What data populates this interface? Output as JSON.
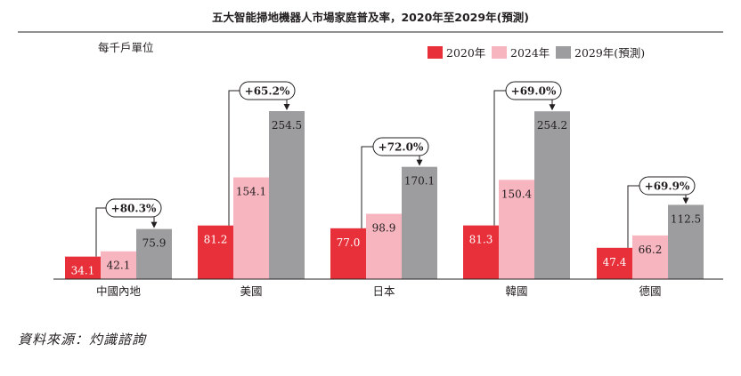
{
  "chart_data": {
    "type": "bar",
    "title": "五大智能掃地機器人市場家庭普及率，2020年至2029年(預測)",
    "ylabel": "每千戶單位",
    "categories": [
      "中國內地",
      "美國",
      "日本",
      "韓國",
      "德國"
    ],
    "series": [
      {
        "name": "2020年",
        "color": "#e8303a",
        "values": [
          34.1,
          81.2,
          77.0,
          81.3,
          47.4
        ]
      },
      {
        "name": "2024年",
        "color": "#f7b5c0",
        "values": [
          42.1,
          154.1,
          98.9,
          150.4,
          66.2
        ]
      },
      {
        "name": "2029年(預測)",
        "color": "#9d9d9f",
        "values": [
          75.9,
          254.5,
          170.1,
          254.2,
          112.5
        ]
      }
    ],
    "annotations": [
      "+80.3%",
      "+65.2%",
      "+72.0%",
      "+69.0%",
      "+69.9%"
    ],
    "ylim": [
      0,
      260
    ],
    "grid": false,
    "legend": "top-right"
  },
  "source": "資料來源：灼識諮詢"
}
